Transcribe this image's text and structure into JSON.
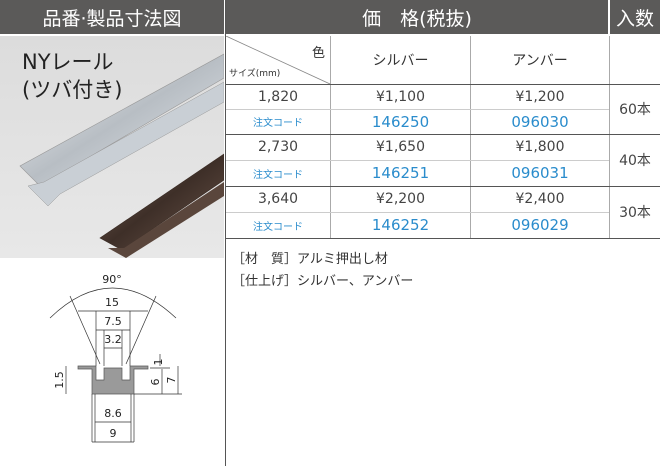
{
  "header": {
    "left_title": "品番·製品寸法図",
    "price_title": "価　格(税抜)",
    "quantity_title": "入数"
  },
  "product": {
    "name_line1": "NYレール",
    "name_line2": "(ツバ付き)"
  },
  "diagram": {
    "angle": "90°",
    "width_top": "15",
    "width_mid": "7.5",
    "width_slot": "3.2",
    "lip_height": "1",
    "flange_thickness": "1.5",
    "inner_height": "6",
    "total_height": "7",
    "base_inner": "8.6",
    "base_outer": "9"
  },
  "table": {
    "color_label": "色",
    "size_label": "サイズ(mm)",
    "columns": [
      "シルバー",
      "アンバー"
    ],
    "rows": [
      {
        "size": "1,820",
        "code_label": "注文コード",
        "silver_price": "¥1,100",
        "silver_code": "146250",
        "amber_price": "¥1,200",
        "amber_code": "096030",
        "quantity": "60本"
      },
      {
        "size": "2,730",
        "code_label": "注文コード",
        "silver_price": "¥1,650",
        "silver_code": "146251",
        "amber_price": "¥1,800",
        "amber_code": "096031",
        "quantity": "40本"
      },
      {
        "size": "3,640",
        "code_label": "注文コード",
        "silver_price": "¥2,200",
        "silver_code": "146252",
        "amber_price": "¥2,400",
        "amber_code": "096029",
        "quantity": "30本"
      }
    ]
  },
  "notes": [
    "［材　質］アルミ押出し材",
    "［仕上げ］シルバー、アンバー"
  ]
}
